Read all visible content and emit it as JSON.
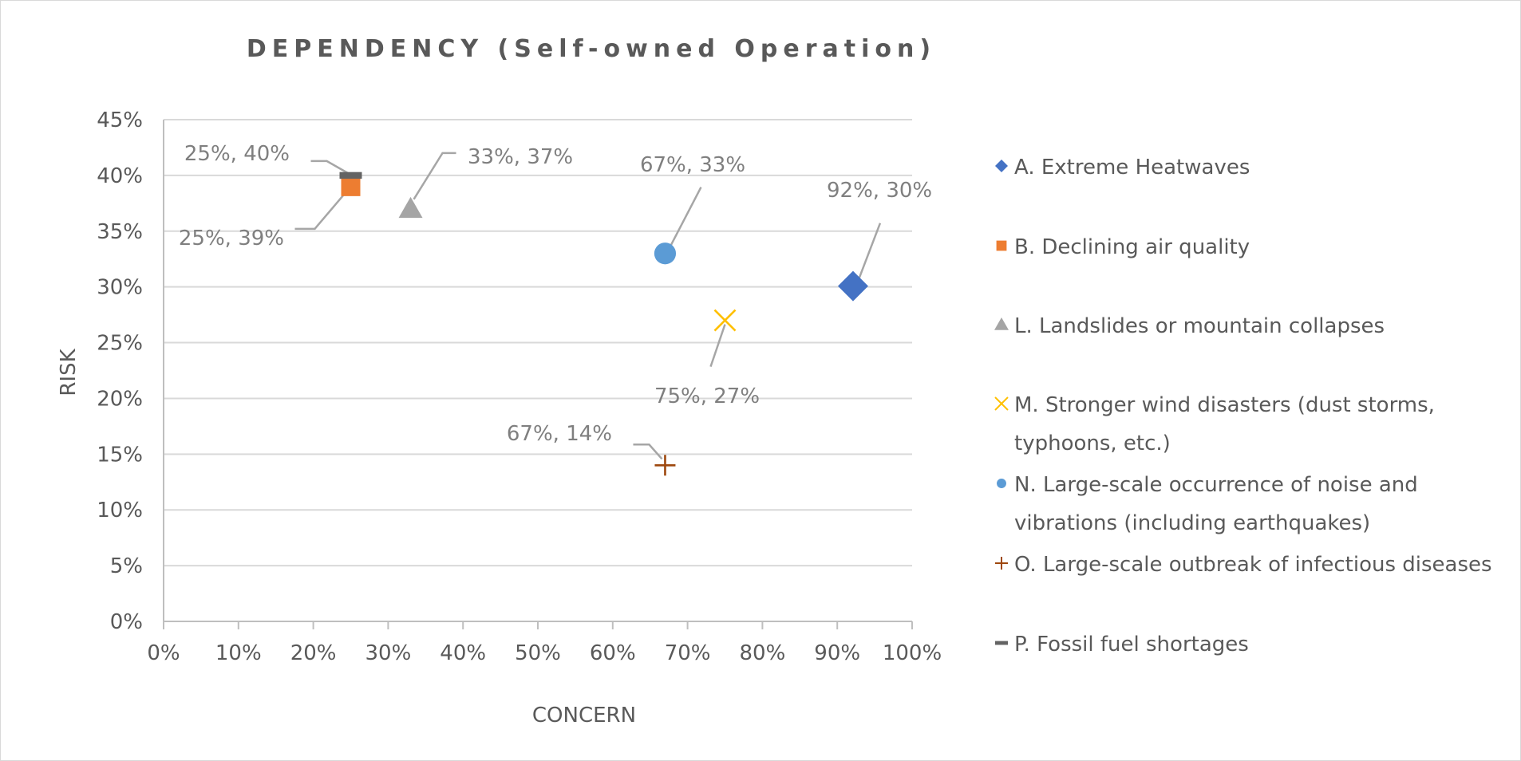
{
  "chart_data": {
    "type": "scatter",
    "title": "DEPENDENCY (Self-owned Operation)",
    "xlabel": "CONCERN",
    "ylabel": "RISK",
    "xlim": [
      0,
      1
    ],
    "ylim": [
      0,
      0.45
    ],
    "x_ticks": [
      "0%",
      "10%",
      "20%",
      "30%",
      "40%",
      "50%",
      "60%",
      "70%",
      "80%",
      "90%",
      "100%"
    ],
    "y_ticks": [
      "0%",
      "5%",
      "10%",
      "15%",
      "20%",
      "25%",
      "30%",
      "35%",
      "40%",
      "45%"
    ],
    "grid": "horizontal",
    "legend_position": "right",
    "series": [
      {
        "name": "A. Extreme Heatwaves",
        "marker": "diamond",
        "color": "#4472C4",
        "points": [
          {
            "x": 0.92,
            "y": 0.3,
            "label": "92%, 30%"
          }
        ]
      },
      {
        "name": "B. Declining air quality",
        "marker": "square",
        "color": "#ED7D31",
        "points": [
          {
            "x": 0.25,
            "y": 0.39,
            "label": "25%, 39%"
          }
        ]
      },
      {
        "name": "L. Landslides or mountain collapses",
        "marker": "triangle",
        "color": "#A5A5A5",
        "points": [
          {
            "x": 0.33,
            "y": 0.37,
            "label": "33%, 37%"
          }
        ]
      },
      {
        "name": "M. Stronger wind disasters (dust storms, typhoons, etc.)",
        "marker": "x",
        "color": "#FFC000",
        "points": [
          {
            "x": 0.75,
            "y": 0.27,
            "label": "75%, 27%"
          }
        ]
      },
      {
        "name": "N. Large-scale occurrence of noise and vibrations (including earthquakes)",
        "marker": "circle",
        "color": "#5B9BD5",
        "points": [
          {
            "x": 0.67,
            "y": 0.33,
            "label": "67%, 33%"
          }
        ]
      },
      {
        "name": "O. Large-scale outbreak of infectious diseases",
        "marker": "plus",
        "color": "#9E480E",
        "points": [
          {
            "x": 0.67,
            "y": 0.14,
            "label": "67%, 14%"
          }
        ]
      },
      {
        "name": "P. Fossil fuel shortages",
        "marker": "dash",
        "color": "#636363",
        "points": [
          {
            "x": 0.25,
            "y": 0.4,
            "label": "25%, 40%"
          }
        ]
      }
    ]
  }
}
